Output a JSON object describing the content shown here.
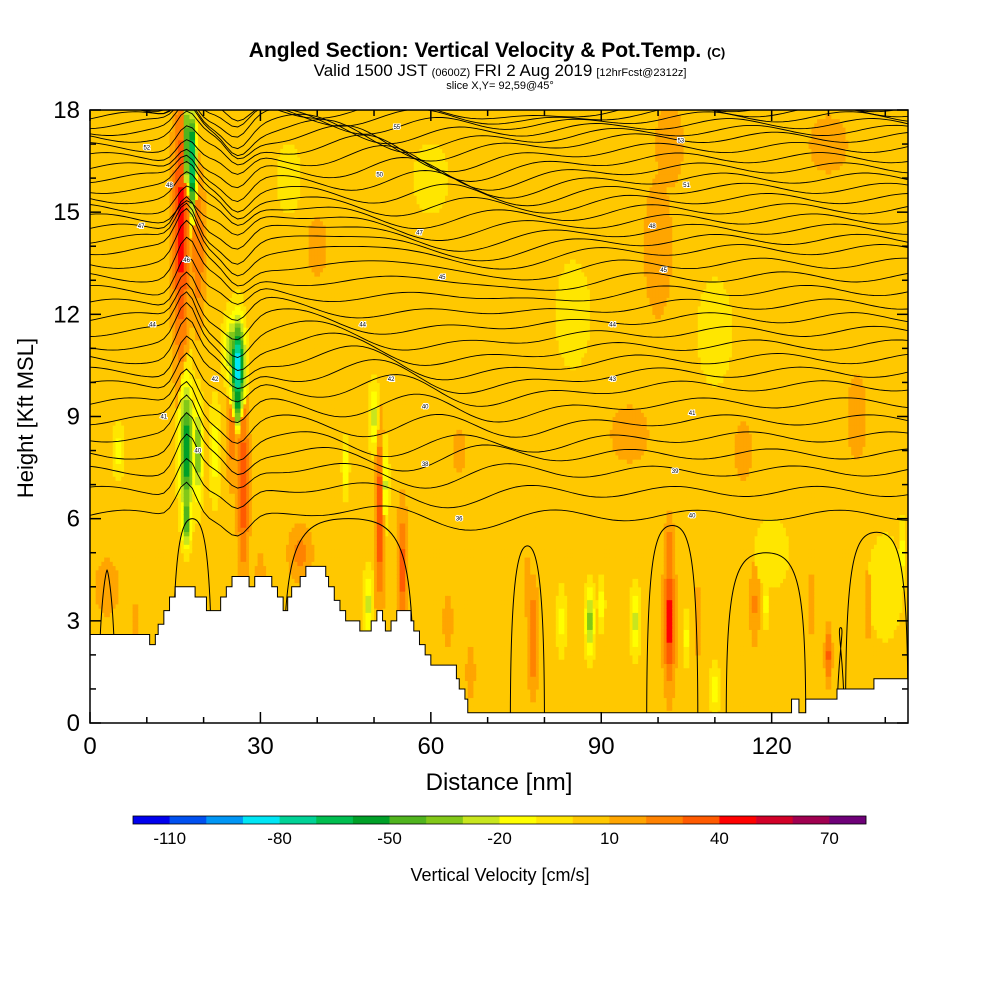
{
  "chart_data": {
    "type": "heatmap",
    "title": {
      "main": "Angled Section: Vertical Velocity & Pot.Temp.",
      "main_unit": "(C)",
      "valid_prefix": "Valid 1500 JST",
      "valid_utc": "(0600Z)",
      "valid_date": "FRI 2 Aug 2019",
      "forecast": "[12hrFcst@2312z]",
      "slice": "slice X,Y= 92,59@45°"
    },
    "xlabel": "Distance [nm]",
    "ylabel": "Height [Kft MSL]",
    "xlim": [
      0,
      144
    ],
    "ylim": [
      0,
      18
    ],
    "x_ticks": [
      0,
      30,
      60,
      90,
      120
    ],
    "y_ticks": [
      0,
      3,
      6,
      9,
      12,
      15,
      18
    ],
    "colorbar": {
      "label": "Vertical Velocity [cm/s]",
      "tick_labels": [
        "-110",
        "-80",
        "-50",
        "-20",
        "10",
        "40",
        "70"
      ],
      "bins": [
        -120,
        -110,
        -100,
        -90,
        -80,
        -70,
        -60,
        -50,
        -40,
        -30,
        -20,
        -10,
        0,
        10,
        20,
        30,
        40,
        50,
        60,
        70,
        80
      ],
      "colors": [
        "#0000ee",
        "#0050f0",
        "#0096f5",
        "#00e6f5",
        "#00d296",
        "#00be50",
        "#00a028",
        "#50b41e",
        "#82c819",
        "#c8e61e",
        "#ffff00",
        "#ffe600",
        "#ffc800",
        "#ffa500",
        "#ff8200",
        "#ff5a00",
        "#ff0000",
        "#d20028",
        "#a00050",
        "#6e0078"
      ]
    },
    "background_value": 5,
    "features": [
      {
        "x": 16,
        "z": 14.5,
        "w": 1.4,
        "h": 4.0,
        "v": 45
      },
      {
        "x": 17,
        "z": 17.0,
        "w": 0.8,
        "h": 1.4,
        "v": -50
      },
      {
        "x": 18,
        "z": 16.5,
        "w": 0.7,
        "h": 1.5,
        "v": -80
      },
      {
        "x": 19,
        "z": 14.0,
        "w": 1.2,
        "h": 2.2,
        "v": 30
      },
      {
        "x": 16.5,
        "z": 12.0,
        "w": 1.0,
        "h": 1.2,
        "v": 25
      },
      {
        "x": 17,
        "z": 8.0,
        "w": 1.2,
        "h": 2.0,
        "v": -60
      },
      {
        "x": 19,
        "z": 8.0,
        "w": 0.8,
        "h": 1.5,
        "v": -40
      },
      {
        "x": 17,
        "z": 6.0,
        "w": 0.8,
        "h": 0.8,
        "v": -55
      },
      {
        "x": 26,
        "z": 10.5,
        "w": 1.2,
        "h": 1.3,
        "v": -90
      },
      {
        "x": 25,
        "z": 11.0,
        "w": 1.4,
        "h": 1.0,
        "v": -40
      },
      {
        "x": 26,
        "z": 9.5,
        "w": 0.6,
        "h": 0.8,
        "v": -65
      },
      {
        "x": 27,
        "z": 7.0,
        "w": 1.0,
        "h": 2.5,
        "v": 40
      },
      {
        "x": 25,
        "z": 8.5,
        "w": 1.0,
        "h": 1.5,
        "v": 25
      },
      {
        "x": 22,
        "z": 8.0,
        "w": 1.0,
        "h": 1.5,
        "v": -15
      },
      {
        "x": 5,
        "z": 8.0,
        "w": 1.0,
        "h": 0.8,
        "v": -15
      },
      {
        "x": 37,
        "z": 5.0,
        "w": 2.0,
        "h": 0.8,
        "v": 25
      },
      {
        "x": 50,
        "z": 9.0,
        "w": 0.8,
        "h": 1.0,
        "v": -25
      },
      {
        "x": 51,
        "z": 6.0,
        "w": 0.8,
        "h": 2.5,
        "v": 40
      },
      {
        "x": 52,
        "z": 7.0,
        "w": 0.6,
        "h": 1.2,
        "v": -25
      },
      {
        "x": 55,
        "z": 4.5,
        "w": 0.9,
        "h": 1.8,
        "v": 35
      },
      {
        "x": 45,
        "z": 7.5,
        "w": 0.6,
        "h": 0.8,
        "v": -20
      },
      {
        "x": 49,
        "z": 3.5,
        "w": 0.8,
        "h": 1.0,
        "v": -25
      },
      {
        "x": 78,
        "z": 2.5,
        "w": 0.9,
        "h": 1.5,
        "v": 32
      },
      {
        "x": 77,
        "z": 4.0,
        "w": 0.6,
        "h": 1.0,
        "v": 18
      },
      {
        "x": 83,
        "z": 3.0,
        "w": 0.8,
        "h": 1.0,
        "v": -15
      },
      {
        "x": 88,
        "z": 3.0,
        "w": 0.8,
        "h": 1.0,
        "v": -35
      },
      {
        "x": 90,
        "z": 3.5,
        "w": 0.6,
        "h": 0.7,
        "v": -20
      },
      {
        "x": 96,
        "z": 3.0,
        "w": 0.8,
        "h": 1.0,
        "v": -25
      },
      {
        "x": 102,
        "z": 3.0,
        "w": 1.0,
        "h": 1.8,
        "v": 48
      },
      {
        "x": 102,
        "z": 5.0,
        "w": 0.8,
        "h": 1.0,
        "v": 30
      },
      {
        "x": 105,
        "z": 2.5,
        "w": 0.6,
        "h": 0.8,
        "v": -15
      },
      {
        "x": 107,
        "z": 3.0,
        "w": 0.6,
        "h": 1.0,
        "v": 20
      },
      {
        "x": 117,
        "z": 3.5,
        "w": 0.8,
        "h": 1.2,
        "v": 22
      },
      {
        "x": 110,
        "z": 1.0,
        "w": 0.8,
        "h": 0.8,
        "v": -15
      },
      {
        "x": 119,
        "z": 3.5,
        "w": 0.6,
        "h": 0.7,
        "v": -15
      },
      {
        "x": 127,
        "z": 3.5,
        "w": 0.5,
        "h": 1.0,
        "v": 18
      },
      {
        "x": 130,
        "z": 2.0,
        "w": 0.6,
        "h": 0.8,
        "v": 35
      },
      {
        "x": 137,
        "z": 3.5,
        "w": 0.5,
        "h": 1.2,
        "v": 18
      },
      {
        "x": 143,
        "z": 5.0,
        "w": 0.6,
        "h": 1.0,
        "v": -15
      },
      {
        "x": 63,
        "z": 3.0,
        "w": 0.8,
        "h": 0.8,
        "v": 20
      },
      {
        "x": 67,
        "z": 1.5,
        "w": 0.8,
        "h": 0.8,
        "v": 18
      },
      {
        "x": 3,
        "z": 4.0,
        "w": 2.5,
        "h": 1.0,
        "v": 15
      },
      {
        "x": 8,
        "z": 3.0,
        "w": 1.0,
        "h": 1.0,
        "v": 12
      },
      {
        "x": 30,
        "z": 4.0,
        "w": 1.0,
        "h": 1.0,
        "v": 18
      },
      {
        "x": 102,
        "z": 17.0,
        "w": 3.0,
        "h": 1.5,
        "v": 15
      },
      {
        "x": 130,
        "z": 17.0,
        "w": 4.0,
        "h": 1.0,
        "v": 15
      },
      {
        "x": 100,
        "z": 14.0,
        "w": 3.0,
        "h": 2.5,
        "v": 15
      },
      {
        "x": 95,
        "z": 8.5,
        "w": 4.0,
        "h": 1.0,
        "v": 15
      },
      {
        "x": 115,
        "z": 8.0,
        "w": 2.0,
        "h": 1.0,
        "v": 15
      },
      {
        "x": 135,
        "z": 9.0,
        "w": 2.0,
        "h": 1.5,
        "v": 15
      },
      {
        "x": 65,
        "z": 8.0,
        "w": 2.0,
        "h": 1.0,
        "v": 12
      },
      {
        "x": 40,
        "z": 14.0,
        "w": 3.0,
        "h": 1.5,
        "v": 12
      },
      {
        "x": 35,
        "z": 16.0,
        "w": 2.0,
        "h": 1.0,
        "v": -10
      },
      {
        "x": 85,
        "z": 12.0,
        "w": 3.0,
        "h": 1.5,
        "v": -10
      },
      {
        "x": 110,
        "z": 11.5,
        "w": 3.0,
        "h": 1.5,
        "v": -10
      },
      {
        "x": 60,
        "z": 16.0,
        "w": 3.0,
        "h": 1.0,
        "v": -10
      },
      {
        "x": 140,
        "z": 4.0,
        "w": 3.0,
        "h": 1.5,
        "v": -10
      },
      {
        "x": 120,
        "z": 5.0,
        "w": 3.0,
        "h": 1.0,
        "v": -10
      }
    ],
    "terrain": [
      [
        0,
        2.6
      ],
      [
        10,
        2.6
      ],
      [
        10.5,
        2.3
      ],
      [
        11.5,
        2.6
      ],
      [
        12,
        2.9
      ],
      [
        13,
        3.3
      ],
      [
        14,
        3.7
      ],
      [
        15,
        4.0
      ],
      [
        18,
        4.0
      ],
      [
        18.5,
        3.7
      ],
      [
        19.5,
        3.7
      ],
      [
        20.5,
        3.3
      ],
      [
        22,
        3.3
      ],
      [
        23,
        3.7
      ],
      [
        24,
        4.0
      ],
      [
        25,
        4.3
      ],
      [
        27,
        4.3
      ],
      [
        28,
        4.0
      ],
      [
        29,
        4.3
      ],
      [
        31,
        4.3
      ],
      [
        32,
        4.0
      ],
      [
        33,
        3.7
      ],
      [
        34,
        3.3
      ],
      [
        34.8,
        3.7
      ],
      [
        35.5,
        4.0
      ],
      [
        37,
        4.3
      ],
      [
        38,
        4.6
      ],
      [
        41,
        4.6
      ],
      [
        41.5,
        4.3
      ],
      [
        42,
        4.0
      ],
      [
        43,
        3.6
      ],
      [
        44,
        3.3
      ],
      [
        45,
        3.0
      ],
      [
        47,
        3.0
      ],
      [
        47.5,
        2.7
      ],
      [
        48.5,
        2.7
      ],
      [
        49.5,
        3.0
      ],
      [
        50.5,
        3.3
      ],
      [
        51,
        3.3
      ],
      [
        51.5,
        3.0
      ],
      [
        52,
        2.7
      ],
      [
        53,
        3.0
      ],
      [
        54,
        3.3
      ],
      [
        56,
        3.3
      ],
      [
        56.5,
        3.0
      ],
      [
        57,
        2.7
      ],
      [
        58,
        2.3
      ],
      [
        59,
        2.0
      ],
      [
        60,
        1.7
      ],
      [
        64,
        1.7
      ],
      [
        64.5,
        1.3
      ],
      [
        65,
        1.0
      ],
      [
        66,
        0.7
      ],
      [
        66.5,
        0.3
      ],
      [
        123,
        0.3
      ],
      [
        123.5,
        0.7
      ],
      [
        124.5,
        0.7
      ],
      [
        124.8,
        0.3
      ],
      [
        125.5,
        0.3
      ],
      [
        126,
        0.7
      ],
      [
        131,
        0.7
      ],
      [
        131.5,
        1.0
      ],
      [
        137,
        1.0
      ],
      [
        138,
        1.3
      ],
      [
        144,
        1.3
      ]
    ],
    "isentropes": {
      "levels": [
        36,
        37,
        38,
        39,
        40,
        41,
        42,
        43,
        44,
        45,
        46,
        47,
        48,
        49,
        50,
        51,
        52,
        53,
        54,
        55,
        56,
        57,
        58,
        59,
        60,
        61,
        62,
        63,
        64,
        65,
        66,
        67,
        68,
        69
      ],
      "base_heights": [
        6.1,
        6.8,
        7.4,
        7.9,
        8.4,
        8.9,
        9.4,
        9.9,
        10.3,
        10.7,
        11.1,
        11.5,
        11.9,
        12.3,
        12.7,
        13.1,
        13.5,
        13.9,
        14.2,
        14.5,
        14.8,
        15.1,
        15.4,
        15.7,
        16.0,
        16.3,
        16.6,
        16.9,
        17.2,
        17.4,
        17.6,
        17.8,
        17.95,
        18.1
      ],
      "labels": [
        {
          "text": "36",
          "x": 65,
          "z": 6.0
        },
        {
          "text": "40",
          "x": 106,
          "z": 6.1
        },
        {
          "text": "38",
          "x": 59,
          "z": 7.6
        },
        {
          "text": "39",
          "x": 103,
          "z": 7.4
        },
        {
          "text": "40",
          "x": 19,
          "z": 8.0
        },
        {
          "text": "40",
          "x": 59,
          "z": 9.3
        },
        {
          "text": "41",
          "x": 13,
          "z": 9.0
        },
        {
          "text": "41",
          "x": 106,
          "z": 9.1
        },
        {
          "text": "42",
          "x": 53,
          "z": 10.1
        },
        {
          "text": "42",
          "x": 22,
          "z": 10.1
        },
        {
          "text": "43",
          "x": 92,
          "z": 10.1
        },
        {
          "text": "44",
          "x": 48,
          "z": 11.7
        },
        {
          "text": "44",
          "x": 11,
          "z": 11.7
        },
        {
          "text": "44",
          "x": 92,
          "z": 11.7
        },
        {
          "text": "45",
          "x": 62,
          "z": 13.1
        },
        {
          "text": "45",
          "x": 101,
          "z": 13.3
        },
        {
          "text": "46",
          "x": 17,
          "z": 13.6
        },
        {
          "text": "47",
          "x": 58,
          "z": 14.4
        },
        {
          "text": "47",
          "x": 9,
          "z": 14.6
        },
        {
          "text": "48",
          "x": 99,
          "z": 14.6
        },
        {
          "text": "48",
          "x": 14,
          "z": 15.8
        },
        {
          "text": "50",
          "x": 51,
          "z": 16.1
        },
        {
          "text": "51",
          "x": 105,
          "z": 15.8
        },
        {
          "text": "52",
          "x": 10,
          "z": 16.9
        },
        {
          "text": "53",
          "x": 104,
          "z": 17.1
        },
        {
          "text": "55",
          "x": 54,
          "z": 17.5
        }
      ]
    },
    "zero_contour_boxes": [
      {
        "x0": 1.5,
        "x1": 4.5,
        "z_top": 4.5
      },
      {
        "x0": 14.5,
        "x1": 21.5,
        "z_top": 6.0
      },
      {
        "x0": 34.0,
        "x1": 57.0,
        "z_top": 6.0
      },
      {
        "x0": 74.0,
        "x1": 80.0,
        "z_top": 5.2
      },
      {
        "x0": 98.0,
        "x1": 107.0,
        "z_top": 5.8
      },
      {
        "x0": 112.0,
        "x1": 126.0,
        "z_top": 5.0
      },
      {
        "x0": 131.5,
        "x1": 132.8,
        "z_top": 2.8
      },
      {
        "x0": 133.0,
        "x1": 144.0,
        "z_top": 5.6
      }
    ]
  }
}
